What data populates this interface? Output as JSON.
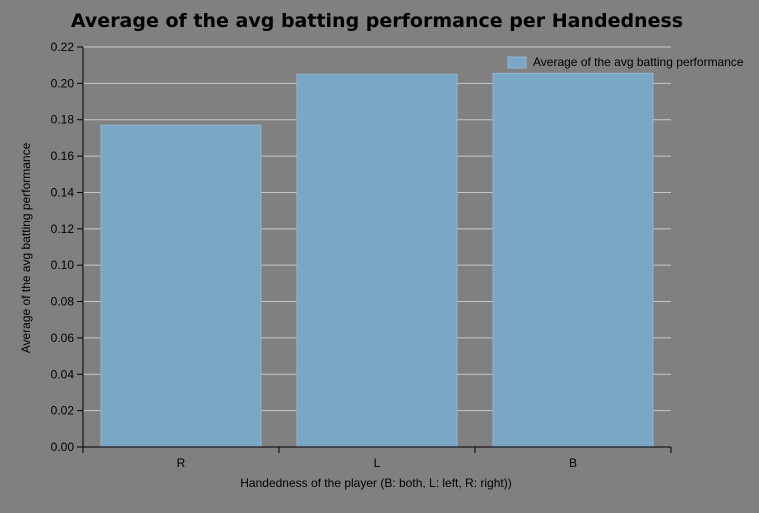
{
  "chart_data": {
    "type": "bar",
    "title": "Average of the avg batting performance per Handedness",
    "xlabel": "Handedness of the player (B: both, L: left, R: right))",
    "ylabel": "Average of the avg batting performance",
    "categories": [
      "R",
      "L",
      "B"
    ],
    "series": [
      {
        "name": "Average of the avg batting performance",
        "values": [
          0.177,
          0.205,
          0.2055
        ]
      }
    ],
    "ylim": [
      0,
      0.22
    ],
    "yticks": [
      "0.00",
      "0.02",
      "0.04",
      "0.06",
      "0.08",
      "0.10",
      "0.12",
      "0.14",
      "0.16",
      "0.18",
      "0.20",
      "0.22"
    ],
    "grid": true,
    "legend_position": "top-right",
    "colors": {
      "background": "#808080",
      "bar_fill": "#7ba7c7",
      "bar_stroke": "#8fb6d3",
      "grid": "#c8c8c8",
      "axis": "#000000"
    }
  }
}
